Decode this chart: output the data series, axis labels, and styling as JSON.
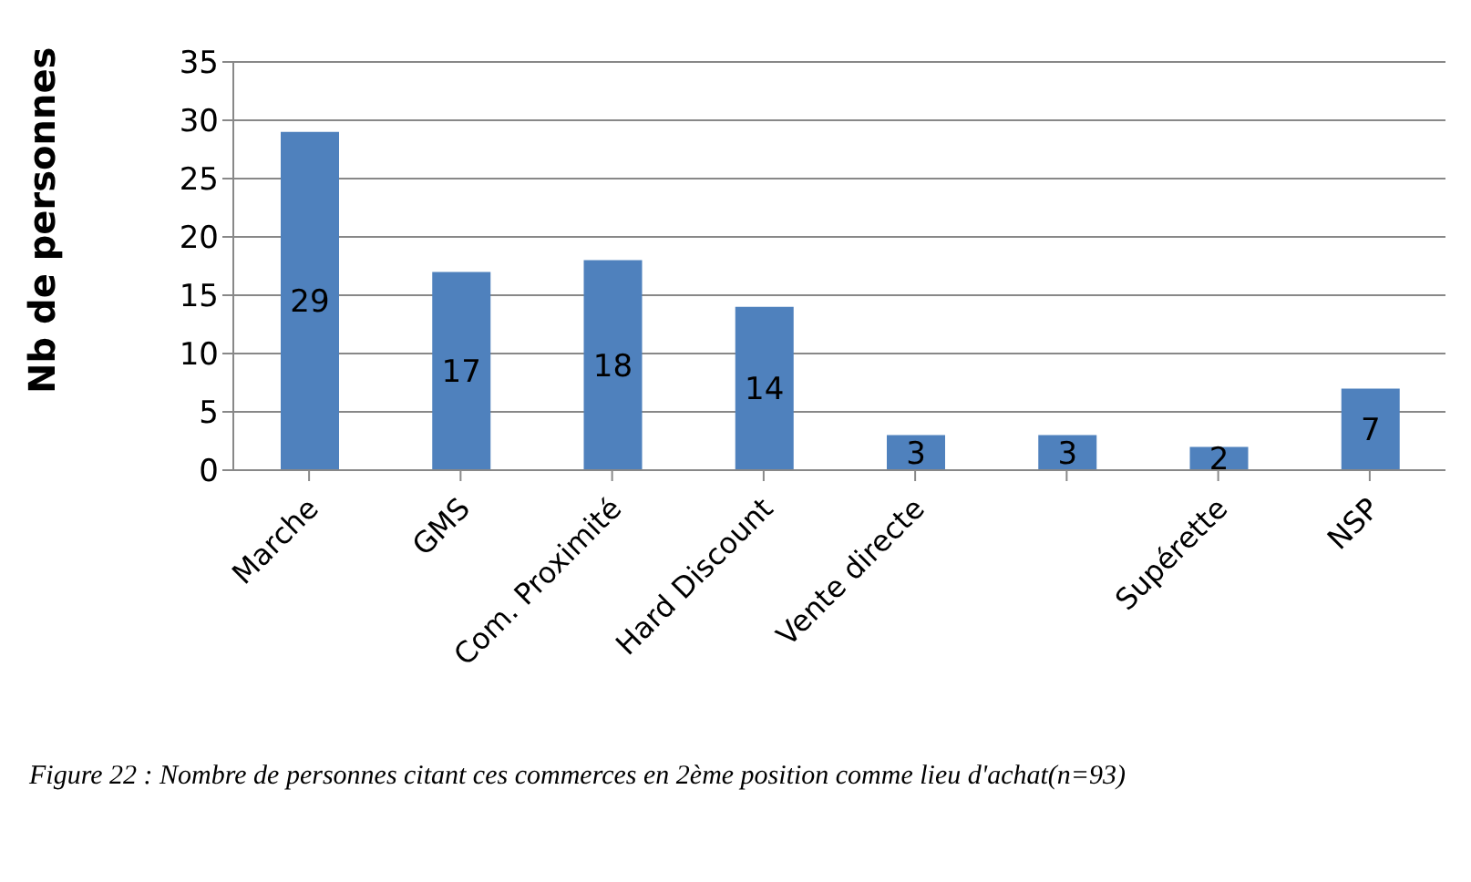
{
  "chart_data": {
    "type": "bar",
    "ylabel": "Nb de personnes",
    "categories": [
      "Marche",
      "GMS",
      "Com. Proximité",
      "Hard Discount",
      "Vente directe",
      null,
      "Supérette",
      "NSP"
    ],
    "values": [
      29,
      17,
      18,
      14,
      3,
      3,
      2,
      7
    ],
    "color": "#4f81bd",
    "ylim": [
      0,
      35
    ],
    "yticks": [
      0,
      5,
      10,
      15,
      20,
      25,
      30,
      35
    ],
    "grid": "y",
    "data_labels": true,
    "annotations": [
      "Figure 22 : Nombre de personnes citant ces commerces en 2ème position comme lieu d'achat(n=93)"
    ]
  }
}
